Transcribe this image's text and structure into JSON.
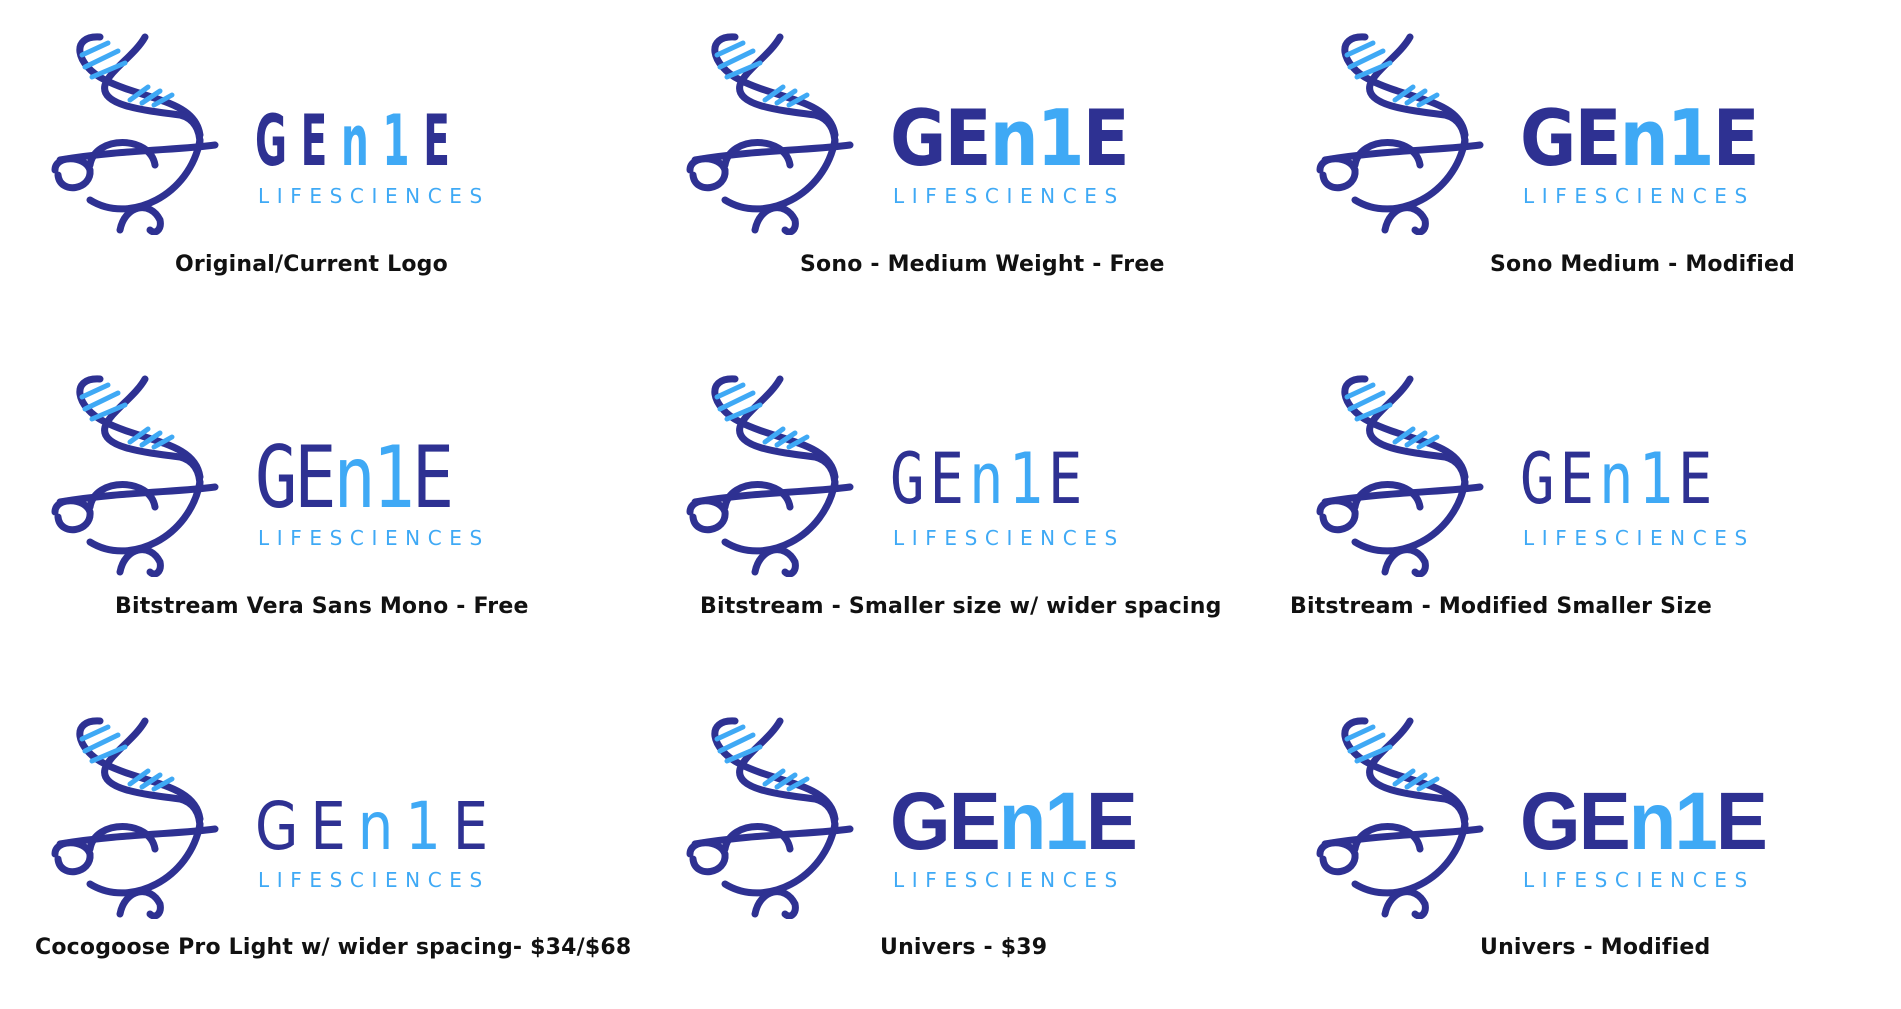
{
  "colors": {
    "dark": "#2E3192",
    "light": "#3FA9F5",
    "caption": "#111111"
  },
  "logo": {
    "letters": [
      "G",
      "E",
      "n",
      "1",
      "E"
    ],
    "letter_colors": [
      "dark",
      "dark",
      "light",
      "light",
      "dark"
    ],
    "tagline": "LIFESCIENCES"
  },
  "variants": [
    {
      "caption": "Original/Current Logo",
      "style": "condensed-bold"
    },
    {
      "caption": "Sono - Medium Weight - Free",
      "style": "medium"
    },
    {
      "caption": "Sono Medium - Modified",
      "style": "medium-modified"
    },
    {
      "caption": "Bitstream Vera Sans Mono - Free",
      "style": "mono"
    },
    {
      "caption": "Bitstream - Smaller size w/ wider spacing",
      "style": "mono-small-wide"
    },
    {
      "caption": "Bitstream - Modified Smaller Size",
      "style": "mono-modified"
    },
    {
      "caption": "Cocogoose Pro Light w/ wider spacing- $34/$68",
      "style": "light-wide"
    },
    {
      "caption": "Univers - $39",
      "style": "univers"
    },
    {
      "caption": "Univers - Modified",
      "style": "univers-modified"
    }
  ]
}
